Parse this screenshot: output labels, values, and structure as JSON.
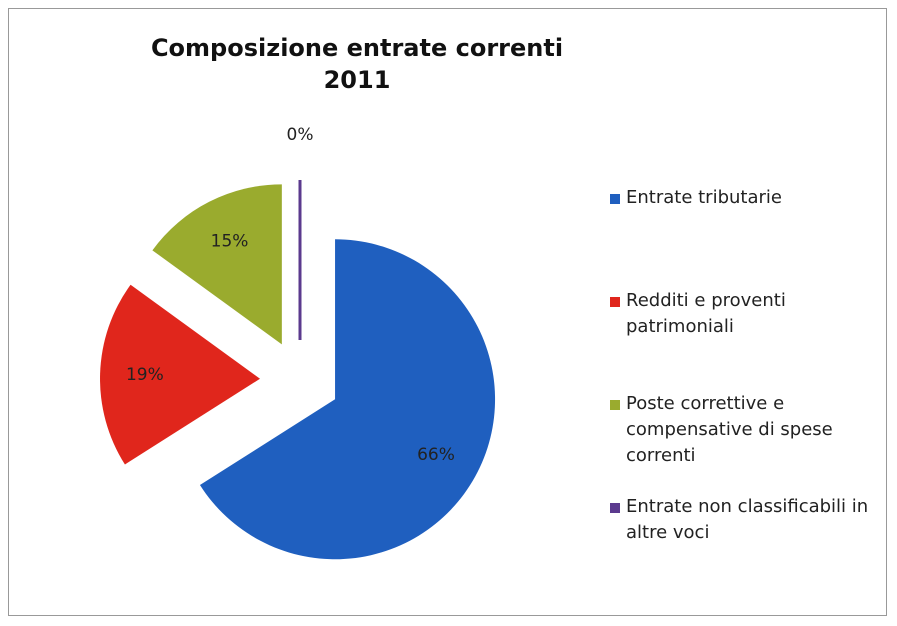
{
  "chart_data": {
    "type": "pie",
    "title": [
      "Composizione entrate correnti",
      "2011"
    ],
    "categories": [
      "Entrate tributarie",
      "Redditi e proventi patrimoniali",
      "Poste correttive e compensative di spese correnti",
      "Entrate non classificabili in altre voci"
    ],
    "values": [
      66,
      19,
      15,
      0
    ],
    "value_labels": [
      "66%",
      "19%",
      "15%",
      "0%"
    ],
    "colors": [
      "#1f5fbf",
      "#e0261c",
      "#9aab2e",
      "#5b3a8e"
    ],
    "exploded": true,
    "legend": "right"
  }
}
